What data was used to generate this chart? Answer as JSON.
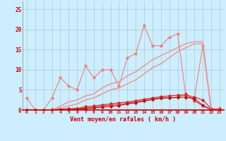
{
  "background_color": "#cceeff",
  "grid_color": "#aacccc",
  "x_labels": [
    "0",
    "1",
    "2",
    "3",
    "4",
    "5",
    "6",
    "7",
    "8",
    "9",
    "10",
    "11",
    "12",
    "13",
    "14",
    "15",
    "16",
    "17",
    "18",
    "19",
    "20",
    "21",
    "22",
    "23"
  ],
  "xlabel": "Vent moyen/en rafales ( km/h )",
  "ylim": [
    0,
    27
  ],
  "xlim": [
    -0.5,
    23.5
  ],
  "yticks": [
    0,
    5,
    10,
    15,
    20,
    25
  ],
  "lines": [
    {
      "x": [
        0,
        1,
        2,
        3,
        4,
        5,
        6,
        7,
        8,
        9,
        10,
        11,
        12,
        13,
        14,
        15,
        16,
        17,
        18,
        19,
        20,
        21,
        22,
        23
      ],
      "y": [
        3,
        0,
        0,
        3,
        8,
        6,
        5,
        11,
        8,
        10,
        10,
        6,
        13,
        14,
        21,
        16,
        16,
        18,
        19,
        3,
        3,
        16,
        0,
        0.5
      ],
      "color": "#f08080",
      "linewidth": 0.8,
      "marker": "D",
      "markersize": 1.8
    },
    {
      "x": [
        0,
        1,
        2,
        3,
        4,
        5,
        6,
        7,
        8,
        9,
        10,
        11,
        12,
        13,
        14,
        15,
        16,
        17,
        18,
        19,
        20,
        21,
        22,
        23
      ],
      "y": [
        0,
        0,
        0,
        0.1,
        0.2,
        0.3,
        0.4,
        0.8,
        1.0,
        1.3,
        1.5,
        1.8,
        2.0,
        2.3,
        2.7,
        3.0,
        3.3,
        3.5,
        3.7,
        3.7,
        3.2,
        2.5,
        0.3,
        0.1
      ],
      "color": "#cc2222",
      "linewidth": 0.8,
      "marker": "D",
      "markersize": 1.8
    },
    {
      "x": [
        0,
        1,
        2,
        3,
        4,
        5,
        6,
        7,
        8,
        9,
        10,
        11,
        12,
        13,
        14,
        15,
        16,
        17,
        18,
        19,
        20,
        21,
        22,
        23
      ],
      "y": [
        0,
        0,
        0,
        0,
        0.1,
        0.2,
        0.3,
        0.5,
        0.7,
        1.0,
        1.2,
        1.4,
        1.7,
        2.0,
        2.4,
        2.7,
        3.0,
        3.1,
        3.2,
        4.0,
        2.3,
        1.0,
        0.1,
        0
      ],
      "color": "#ee3333",
      "linewidth": 0.8,
      "marker": "D",
      "markersize": 1.8
    },
    {
      "x": [
        0,
        1,
        2,
        3,
        4,
        5,
        6,
        7,
        8,
        9,
        10,
        11,
        12,
        13,
        14,
        15,
        16,
        17,
        18,
        19,
        20,
        21,
        22,
        23
      ],
      "y": [
        0,
        0,
        0,
        0,
        0.1,
        0.1,
        0.2,
        0.3,
        0.5,
        0.7,
        0.9,
        1.1,
        1.5,
        1.8,
        2.2,
        2.6,
        2.9,
        3.0,
        3.1,
        3.2,
        2.8,
        1.2,
        0.1,
        0
      ],
      "color": "#bb1111",
      "linewidth": 0.8,
      "marker": "D",
      "markersize": 1.8
    },
    {
      "x": [
        0,
        1,
        2,
        3,
        4,
        5,
        6,
        7,
        8,
        9,
        10,
        11,
        12,
        13,
        14,
        15,
        16,
        17,
        18,
        19,
        20,
        21,
        22,
        23
      ],
      "y": [
        0,
        0,
        0,
        0,
        0.5,
        1.0,
        1.5,
        2.5,
        3.0,
        4.0,
        5.0,
        5.5,
        6.5,
        7.5,
        9.0,
        10.5,
        11.5,
        13.0,
        14.5,
        15.5,
        16.5,
        16.5,
        0,
        0
      ],
      "color": "#f09090",
      "linewidth": 1.0,
      "marker": null,
      "markersize": 0
    },
    {
      "x": [
        0,
        1,
        2,
        3,
        4,
        5,
        6,
        7,
        8,
        9,
        10,
        11,
        12,
        13,
        14,
        15,
        16,
        17,
        18,
        19,
        20,
        21,
        22,
        23
      ],
      "y": [
        0,
        0,
        0,
        0,
        1.0,
        2.0,
        2.5,
        3.5,
        4.0,
        5.5,
        6.5,
        7.0,
        8.5,
        9.5,
        11.0,
        12.5,
        13.5,
        14.5,
        15.5,
        16.5,
        17.0,
        17.0,
        0,
        0
      ],
      "color": "#f09090",
      "linewidth": 1.0,
      "marker": null,
      "markersize": 0
    }
  ]
}
